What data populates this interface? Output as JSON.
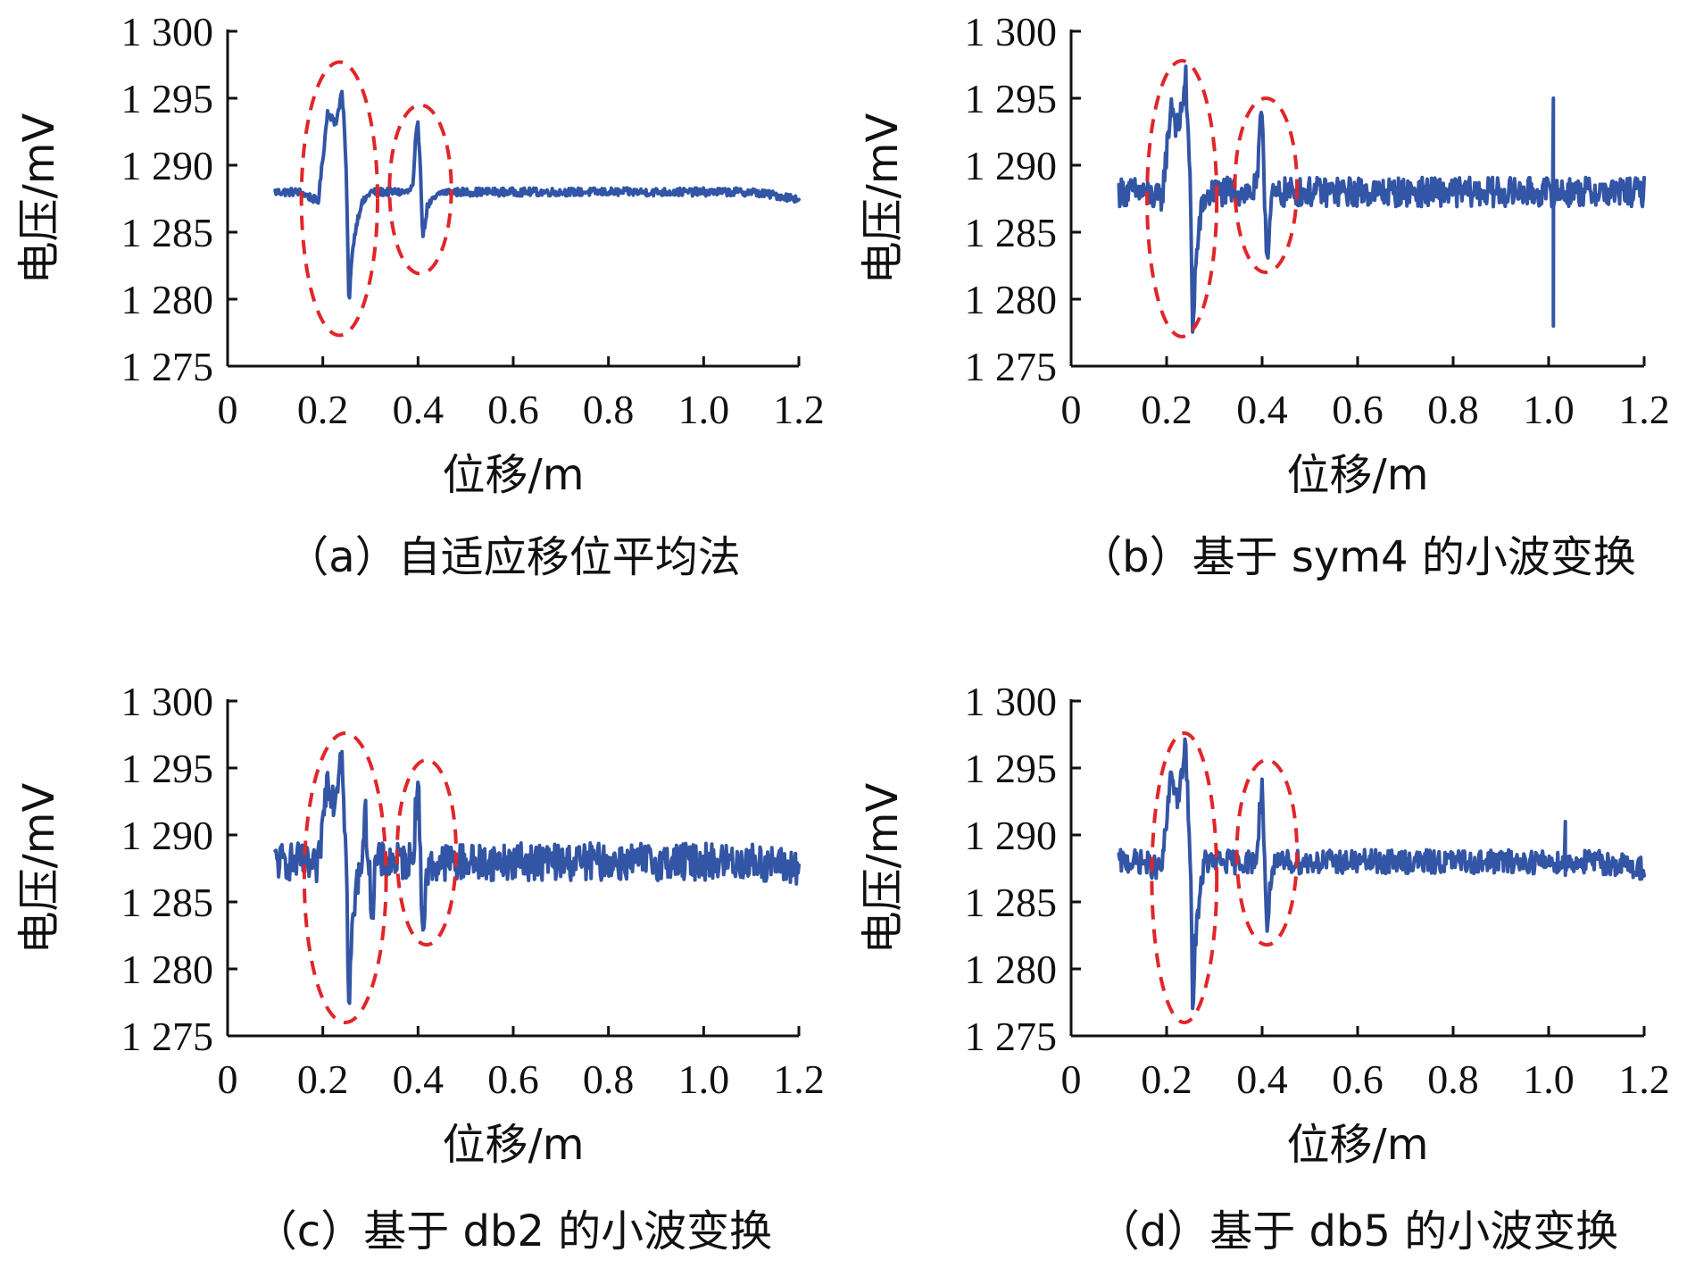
{
  "colors": {
    "series": "#3355a5",
    "ellipse": "#e0262a"
  },
  "chart_data": [
    {
      "type": "line",
      "caption": "（a）自适应移位平均法",
      "xlabel": "位移/m",
      "ylabel": "电压/mV",
      "xlim": [
        0,
        1.2
      ],
      "ylim": [
        1275,
        1300
      ],
      "xticks": [
        0,
        0.2,
        0.4,
        0.6,
        0.8,
        1.0,
        1.2
      ],
      "xtick_labels": [
        "0",
        "0.2",
        "0.4",
        "0.6",
        "0.8",
        "1.0",
        "1.2"
      ],
      "yticks": [
        1275,
        1280,
        1285,
        1290,
        1295,
        1300
      ],
      "ytick_labels": [
        "1 275",
        "1 280",
        "1 285",
        "1 290",
        "1 295",
        "1 300"
      ],
      "noise_amplitude": 0.3,
      "spike": null,
      "series": [
        {
          "x": [
            0.1,
            0.15,
            0.18,
            0.19,
            0.2,
            0.21,
            0.22,
            0.225,
            0.23,
            0.24,
            0.245,
            0.25,
            0.255,
            0.26,
            0.27,
            0.28,
            0.3,
            0.35,
            0.38,
            0.39,
            0.395,
            0.4,
            0.405,
            0.41,
            0.42,
            0.45,
            0.5,
            0.6,
            0.7,
            0.8,
            0.9,
            1.0,
            1.1,
            1.2
          ],
          "y": [
            1288,
            1288,
            1287.5,
            1287.2,
            1290.5,
            1294,
            1293.5,
            1293,
            1293.6,
            1295.5,
            1293,
            1288.5,
            1279,
            1283,
            1285.5,
            1287,
            1288,
            1288,
            1288,
            1288.5,
            1292,
            1293,
            1290,
            1284.5,
            1287,
            1288,
            1288,
            1288,
            1288,
            1288,
            1288,
            1288,
            1288,
            1287.5
          ]
        }
      ],
      "ellipses": [
        {
          "cx": 0.235,
          "cy": 1287.5,
          "rx": 0.08,
          "ry": 10.2
        },
        {
          "cx": 0.405,
          "cy": 1288.2,
          "rx": 0.065,
          "ry": 6.3
        }
      ]
    },
    {
      "type": "line",
      "caption": "（b）基于 sym4 的小波变换",
      "xlabel": "位移/m",
      "ylabel": "电压/mV",
      "xlim": [
        0,
        1.2
      ],
      "ylim": [
        1275,
        1300
      ],
      "xticks": [
        0,
        0.2,
        0.4,
        0.6,
        0.8,
        1.0,
        1.2
      ],
      "xtick_labels": [
        "0",
        "0.2",
        "0.4",
        "0.6",
        "0.8",
        "1.0",
        "1.2"
      ],
      "yticks": [
        1275,
        1280,
        1285,
        1290,
        1295,
        1300
      ],
      "ytick_labels": [
        "1 275",
        "1 280",
        "1 285",
        "1 290",
        "1 295",
        "1 300"
      ],
      "noise_amplitude": 1.1,
      "spike": {
        "x": 1.01,
        "ymin": 1278,
        "ymax": 1295
      },
      "series": [
        {
          "x": [
            0.1,
            0.15,
            0.18,
            0.19,
            0.2,
            0.21,
            0.22,
            0.225,
            0.23,
            0.24,
            0.245,
            0.25,
            0.255,
            0.26,
            0.27,
            0.28,
            0.3,
            0.35,
            0.38,
            0.39,
            0.395,
            0.4,
            0.405,
            0.41,
            0.42,
            0.45,
            0.5,
            0.6,
            0.7,
            0.8,
            0.9,
            1.0,
            1.1,
            1.2
          ],
          "y": [
            1288,
            1288,
            1287.5,
            1287.5,
            1291,
            1294.8,
            1293,
            1292.5,
            1294,
            1296.5,
            1292,
            1288,
            1277,
            1282,
            1286,
            1287.5,
            1288,
            1288,
            1288,
            1288.5,
            1292,
            1294.5,
            1288,
            1283,
            1287.5,
            1288,
            1288,
            1288,
            1288,
            1288,
            1288,
            1288,
            1288,
            1288
          ]
        }
      ],
      "ellipses": [
        {
          "cx": 0.232,
          "cy": 1287.5,
          "rx": 0.073,
          "ry": 10.3
        },
        {
          "cx": 0.408,
          "cy": 1288.5,
          "rx": 0.065,
          "ry": 6.5
        }
      ]
    },
    {
      "type": "line",
      "caption": "（c）基于 db2 的小波变换",
      "xlabel": "位移/m",
      "ylabel": "电压/mV",
      "xlim": [
        0,
        1.2
      ],
      "ylim": [
        1275,
        1300
      ],
      "xticks": [
        0,
        0.2,
        0.4,
        0.6,
        0.8,
        1.0,
        1.2
      ],
      "xtick_labels": [
        "0",
        "0.2",
        "0.4",
        "0.6",
        "0.8",
        "1.0",
        "1.2"
      ],
      "yticks": [
        1275,
        1280,
        1285,
        1290,
        1295,
        1300
      ],
      "ytick_labels": [
        "1 275",
        "1 280",
        "1 285",
        "1 290",
        "1 295",
        "1 300"
      ],
      "noise_amplitude": 1.4,
      "spike": null,
      "series": [
        {
          "x": [
            0.1,
            0.15,
            0.18,
            0.19,
            0.2,
            0.21,
            0.22,
            0.225,
            0.23,
            0.24,
            0.245,
            0.25,
            0.255,
            0.26,
            0.27,
            0.28,
            0.29,
            0.3,
            0.305,
            0.31,
            0.35,
            0.38,
            0.39,
            0.395,
            0.4,
            0.405,
            0.41,
            0.42,
            0.45,
            0.5,
            0.6,
            0.7,
            0.8,
            0.9,
            1.0,
            1.1,
            1.2
          ],
          "y": [
            1288,
            1288,
            1287.5,
            1287.5,
            1291,
            1294.6,
            1293,
            1292.5,
            1294,
            1297,
            1292,
            1287,
            1276,
            1282,
            1286,
            1288,
            1291.3,
            1286,
            1284,
            1288,
            1288,
            1288,
            1288.5,
            1292,
            1294.3,
            1288,
            1282.8,
            1287.5,
            1288,
            1288,
            1288,
            1288,
            1288,
            1288,
            1288,
            1288,
            1287.5
          ]
        }
      ],
      "ellipses": [
        {
          "cx": 0.247,
          "cy": 1286.8,
          "rx": 0.086,
          "ry": 10.8
        },
        {
          "cx": 0.418,
          "cy": 1288.7,
          "rx": 0.062,
          "ry": 6.9
        }
      ]
    },
    {
      "type": "line",
      "caption": "（d）基于 db5 的小波变换",
      "xlabel": "位移/m",
      "ylabel": "电压/mV",
      "xlim": [
        0,
        1.2
      ],
      "ylim": [
        1275,
        1300
      ],
      "xticks": [
        0,
        0.2,
        0.4,
        0.6,
        0.8,
        1.0,
        1.2
      ],
      "xtick_labels": [
        "0",
        "0.2",
        "0.4",
        "0.6",
        "0.8",
        "1.0",
        "1.2"
      ],
      "yticks": [
        1275,
        1280,
        1285,
        1290,
        1295,
        1300
      ],
      "ytick_labels": [
        "1 275",
        "1 280",
        "1 285",
        "1 290",
        "1 295",
        "1 300"
      ],
      "noise_amplitude": 0.9,
      "spike": {
        "x": 1.035,
        "ymin": 1287,
        "ymax": 1291
      },
      "series": [
        {
          "x": [
            0.1,
            0.15,
            0.18,
            0.19,
            0.2,
            0.21,
            0.22,
            0.225,
            0.23,
            0.24,
            0.245,
            0.25,
            0.255,
            0.26,
            0.27,
            0.28,
            0.3,
            0.35,
            0.38,
            0.39,
            0.395,
            0.4,
            0.405,
            0.41,
            0.42,
            0.45,
            0.5,
            0.6,
            0.7,
            0.8,
            0.9,
            1.0,
            1.1,
            1.2
          ],
          "y": [
            1288,
            1288,
            1287.5,
            1287.5,
            1291,
            1294.7,
            1293,
            1292.5,
            1294,
            1296.7,
            1292,
            1287.5,
            1276.5,
            1282,
            1286,
            1288,
            1288,
            1288,
            1288,
            1288.5,
            1292,
            1294,
            1288,
            1282.8,
            1287.5,
            1288,
            1288,
            1288,
            1288,
            1288,
            1288,
            1288,
            1288,
            1287.5
          ]
        }
      ],
      "ellipses": [
        {
          "cx": 0.237,
          "cy": 1286.8,
          "rx": 0.068,
          "ry": 10.8
        },
        {
          "cx": 0.41,
          "cy": 1288.7,
          "rx": 0.063,
          "ry": 6.9
        }
      ]
    }
  ]
}
